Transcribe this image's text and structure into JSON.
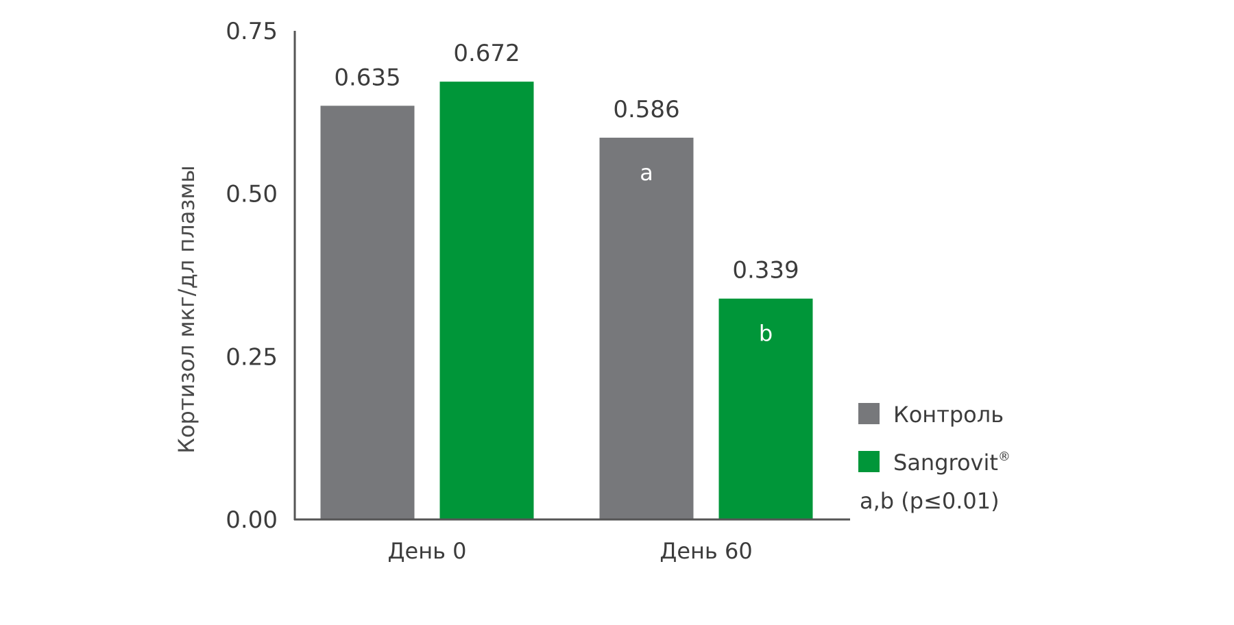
{
  "chart_data": {
    "type": "bar",
    "title": "",
    "xlabel": "",
    "ylabel": "Кортизол мкг/дл плазмы",
    "ylim": [
      0,
      0.75
    ],
    "yticks": [
      "0.00",
      "0.25",
      "0.50",
      "0.75"
    ],
    "categories": [
      "День 0",
      "День 60"
    ],
    "series": [
      {
        "name": "Контроль",
        "color": "#77787b",
        "values": [
          0.635,
          0.586
        ],
        "value_labels": [
          "0.635",
          "0.586"
        ],
        "annotations": [
          "",
          "a"
        ]
      },
      {
        "name": "Sangrovit",
        "name_superscript": "®",
        "color": "#009639",
        "values": [
          0.672,
          0.339
        ],
        "value_labels": [
          "0.672",
          "0.339"
        ],
        "annotations": [
          "",
          "b"
        ]
      }
    ],
    "legend_position": "right",
    "legend_note": "a,b (p≤0.01)",
    "grid": false
  }
}
